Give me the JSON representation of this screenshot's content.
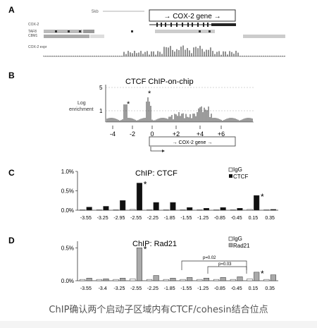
{
  "caption": "ChIP确认两个启动子区域内有CTCF/cohesin结合位点",
  "panelA": {
    "label": "A",
    "scale_label": "5kb",
    "gene_box": "→ COX-2 gene →",
    "track_labels": [
      "COX-2",
      "TAF8",
      "C8M1",
      "COX-2 expr"
    ]
  },
  "panelB": {
    "label": "B",
    "title": "CTCF ChIP-on-chip",
    "ylabel_line1": "Log",
    "ylabel_line2": "enrichment",
    "yticks": [
      "5",
      "1"
    ],
    "xticks": [
      "-4",
      "-2",
      "0",
      "+2",
      "+4",
      "+6"
    ],
    "arrow_box": "→ COX-2 gene →",
    "star": "*"
  },
  "chart_data": [
    {
      "type": "bar",
      "panel": "C",
      "title": "ChIP: CTCF",
      "legend": [
        "IgG",
        "CTCF"
      ],
      "yticks": [
        "0.0%",
        "0.5%",
        "1.0%"
      ],
      "ylim": [
        0,
        1.0
      ],
      "categories": [
        "-3.55",
        "-3.25",
        "-2.95",
        "-2.55",
        "-2.25",
        "-1.85",
        "-1.55",
        "-1.25",
        "-0.85",
        "-0.45",
        "0.15",
        "0.35"
      ],
      "series": [
        {
          "name": "IgG",
          "values": [
            0.01,
            0.01,
            0.01,
            0.02,
            0.01,
            0.01,
            0.01,
            0.01,
            0.01,
            0.01,
            0.02,
            0.01
          ]
        },
        {
          "name": "CTCF",
          "values": [
            0.08,
            0.1,
            0.25,
            0.7,
            0.2,
            0.2,
            0.07,
            0.05,
            0.07,
            0.05,
            0.38,
            0.02
          ]
        }
      ],
      "stars": [
        "-2.55",
        "0.15"
      ]
    },
    {
      "type": "bar",
      "panel": "D",
      "title": "ChIP: Rad21",
      "legend": [
        "IgG",
        "Rad21"
      ],
      "yticks": [
        "0.0%",
        "0.5%"
      ],
      "ylim": [
        0,
        0.6
      ],
      "categories": [
        "-3.55",
        "-3.4",
        "-3.25",
        "-2.55",
        "-2.25",
        "-1.85",
        "-1.55",
        "-1.25",
        "-0.85",
        "-0.45",
        "0.15",
        "0.35"
      ],
      "series": [
        {
          "name": "IgG",
          "values": [
            0.02,
            0.02,
            0.02,
            0.03,
            0.02,
            0.02,
            0.02,
            0.02,
            0.02,
            0.02,
            0.03,
            0.02
          ]
        },
        {
          "name": "Rad21",
          "values": [
            0.04,
            0.03,
            0.04,
            0.5,
            0.08,
            0.04,
            0.05,
            0.04,
            0.05,
            0.06,
            0.13,
            0.09
          ]
        }
      ],
      "stars": [
        "-2.55",
        "0.15"
      ],
      "pvalues": [
        "p=0.02",
        "p=0.03"
      ]
    }
  ]
}
